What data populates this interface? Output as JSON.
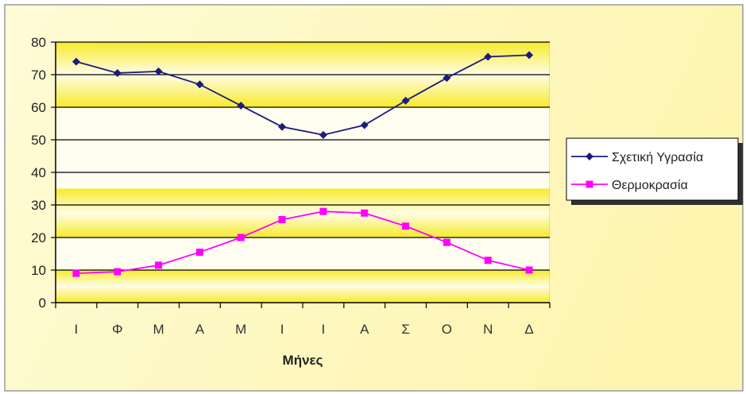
{
  "chart_data": {
    "type": "line",
    "categories": [
      "Ι",
      "Φ",
      "Μ",
      "Α",
      "Μ",
      "Ι",
      "Ι",
      "Α",
      "Σ",
      "Ο",
      "Ν",
      "Δ"
    ],
    "series": [
      {
        "name": "Σχετική Υγρασία",
        "color": "#1c1c7a",
        "marker": "diamond",
        "values": [
          74,
          70.5,
          71,
          67,
          60.5,
          54,
          51.5,
          54.5,
          62,
          69,
          75.5,
          76
        ]
      },
      {
        "name": "Θερμοκρασία",
        "color": "#ff00ff",
        "marker": "square",
        "values": [
          9,
          9.5,
          11.5,
          15.5,
          20,
          25.5,
          28,
          27.5,
          23.5,
          18.5,
          13,
          10
        ]
      }
    ],
    "title": "",
    "xlabel": "Μήνες",
    "ylabel": "",
    "ylim": [
      0,
      80
    ],
    "yticks": [
      "0",
      "10",
      "20",
      "30",
      "40",
      "50",
      "60",
      "70",
      "80"
    ],
    "grid": true,
    "legend_position": "right",
    "plot_background": "yellow-white bands"
  }
}
